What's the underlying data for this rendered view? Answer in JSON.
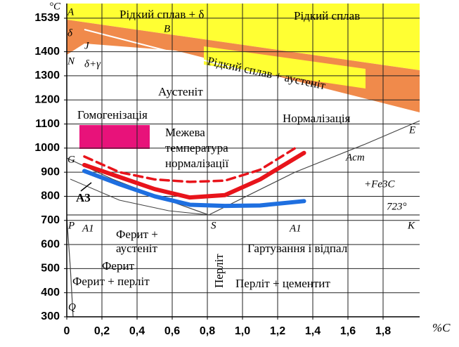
{
  "chart_data": {
    "type": "line",
    "y_unit": "°C",
    "x_unit": "%C",
    "xlim": [
      0,
      2.0
    ],
    "ylim": [
      300,
      1600
    ],
    "xticks": [
      0,
      {
        "value": 0.2,
        "label": "0,2"
      },
      {
        "value": 0.4,
        "label": "0,4"
      },
      {
        "value": 0.6,
        "label": "0,6"
      },
      {
        "value": 0.8,
        "label": "0,8"
      },
      {
        "value": 1.0,
        "label": "1,0"
      },
      {
        "value": 1.2,
        "label": "1,2"
      },
      {
        "value": 1.4,
        "label": "1,4"
      },
      {
        "value": 1.6,
        "label": "1,6"
      },
      {
        "value": 1.8,
        "label": "1,8"
      }
    ],
    "yticks": [
      300,
      400,
      500,
      600,
      700,
      800,
      900,
      1000,
      1100,
      1200,
      1300,
      1400,
      1539
    ],
    "grid": true,
    "series": [
      {
        "color": "#e8141b",
        "style": "solid",
        "x": [
          0.1,
          0.3,
          0.5,
          0.7,
          0.9,
          1.1,
          1.35
        ],
        "values": [
          930,
          880,
          830,
          795,
          805,
          870,
          980
        ]
      },
      {
        "color": "#1e6fe0",
        "style": "solid",
        "x": [
          0.1,
          0.3,
          0.5,
          0.7,
          0.9,
          1.1,
          1.35
        ],
        "values": [
          905,
          850,
          800,
          765,
          760,
          762,
          780
        ]
      },
      {
        "color": "#e8141b",
        "style": "dashed",
        "x": [
          0.1,
          0.3,
          0.5,
          0.7,
          0.9,
          1.1,
          1.3
        ],
        "values": [
          965,
          900,
          870,
          860,
          865,
          910,
          1000
        ]
      }
    ],
    "annotations": [
      "Рідкий сплав + δ",
      "Рідкий сплав",
      "Рідкий сплав + аустеніт",
      "Аустеніт",
      "Гомогенізація",
      "Межева",
      "температура",
      "нормалізації",
      "Нормалізація",
      "A3",
      "Ферит +",
      "аустеніт",
      "Ферит",
      "Ферит + перліт",
      "Перліт",
      "Гартування і відпал",
      "Перліт + цементит",
      "+Fe3C",
      "723°",
      "A",
      "B",
      "N",
      "G",
      "E",
      "P",
      "S",
      "K",
      "Q",
      "J",
      "δ",
      "δ+γ",
      "Acm",
      "A1",
      "A1"
    ]
  }
}
